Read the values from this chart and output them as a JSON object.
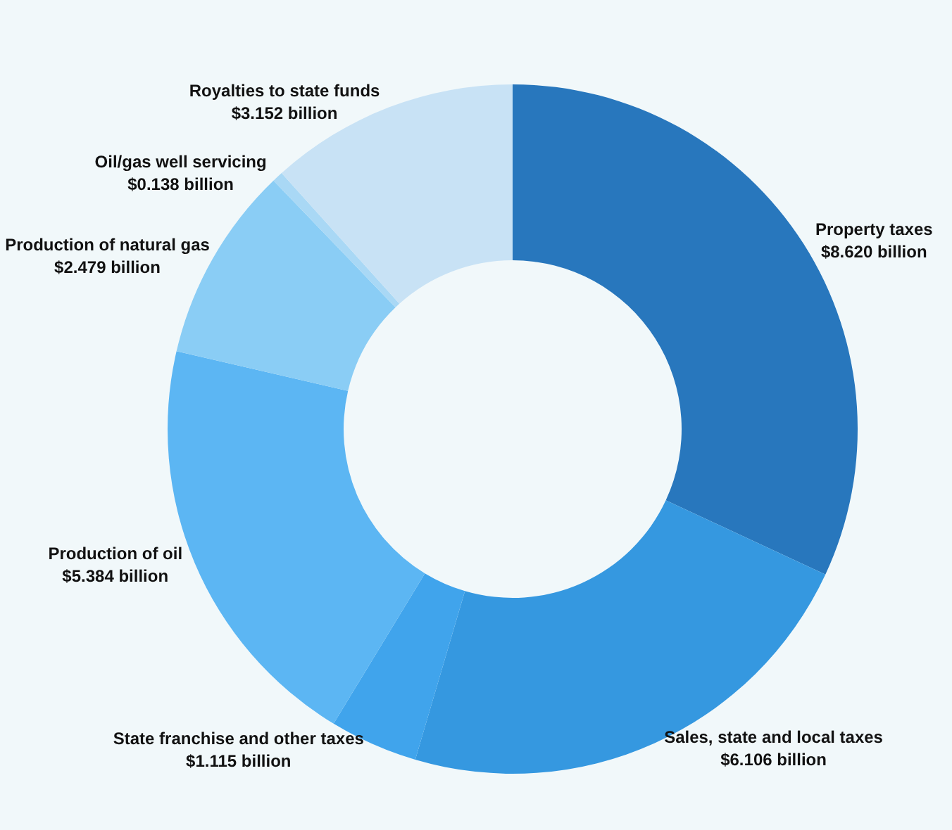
{
  "chart_data": {
    "type": "donut",
    "categories": [
      "Property taxes",
      "Sales, state and local taxes",
      "State franchise and other taxes",
      "Production of oil",
      "Production of natural gas",
      "Oil/gas well servicing",
      "Royalties to state funds"
    ],
    "values": [
      8.62,
      6.106,
      1.115,
      5.384,
      2.479,
      0.138,
      3.152
    ],
    "value_labels": [
      "$8.620 billion",
      "$6.106 billion",
      "$1.115 billion",
      "$5.384 billion",
      "$2.479 billion",
      "$0.138 billion",
      "$3.152 billion"
    ],
    "colors": [
      "#2877bd",
      "#3598e0",
      "#40a4ec",
      "#5cb6f3",
      "#8acdf5",
      "#a9d8f5",
      "#c8e2f5"
    ],
    "legend": false
  }
}
